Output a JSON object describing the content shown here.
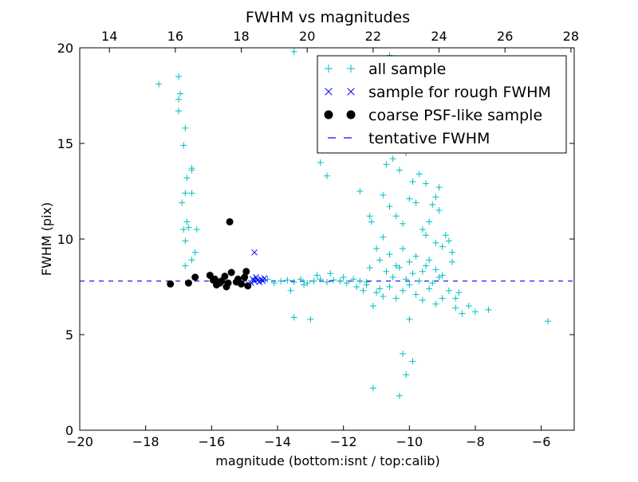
{
  "chart_data": {
    "type": "scatter",
    "title": "FWHM vs magnitudes",
    "xlabel": "magnitude (bottom:isnt / top:calib)",
    "ylabel": "FWHM (pix)",
    "xlim": [
      -20,
      -5
    ],
    "ylim": [
      0,
      20
    ],
    "top_xlim": [
      13.1,
      28.1
    ],
    "x_ticks": [
      -20,
      -18,
      -16,
      -14,
      -12,
      -10,
      -8,
      -6
    ],
    "x_tick_labels": [
      "−20",
      "−18",
      "−16",
      "−14",
      "−12",
      "−10",
      "−8",
      "−6"
    ],
    "y_ticks": [
      0,
      5,
      10,
      15,
      20
    ],
    "y_tick_labels": [
      "0",
      "5",
      "10",
      "15",
      "20"
    ],
    "top_x_ticks": [
      14,
      16,
      18,
      20,
      22,
      24,
      26,
      28
    ],
    "top_x_tick_labels": [
      "14",
      "16",
      "18",
      "20",
      "22",
      "24",
      "26",
      "28"
    ],
    "legend_position": "top-right",
    "series": [
      {
        "name": "all sample",
        "marker": "plus",
        "color": "#00bfbf",
        "points": [
          [
            -17.6,
            18.1
          ],
          [
            -17.0,
            18.5
          ],
          [
            -17.0,
            17.3
          ],
          [
            -16.95,
            17.6
          ],
          [
            -17.0,
            16.7
          ],
          [
            -16.8,
            15.8
          ],
          [
            -16.85,
            14.9
          ],
          [
            -16.6,
            13.7
          ],
          [
            -16.6,
            13.6
          ],
          [
            -16.75,
            13.2
          ],
          [
            -16.8,
            12.4
          ],
          [
            -16.6,
            12.4
          ],
          [
            -16.9,
            11.9
          ],
          [
            -16.75,
            10.9
          ],
          [
            -16.7,
            10.6
          ],
          [
            -16.85,
            10.5
          ],
          [
            -16.45,
            10.5
          ],
          [
            -16.8,
            9.9
          ],
          [
            -16.5,
            9.3
          ],
          [
            -16.8,
            8.6
          ],
          [
            -16.6,
            8.9
          ],
          [
            -14.7,
            7.9
          ],
          [
            -14.5,
            7.8
          ],
          [
            -14.3,
            7.9
          ],
          [
            -14.1,
            7.7
          ],
          [
            -13.9,
            7.8
          ],
          [
            -13.7,
            7.85
          ],
          [
            -13.5,
            7.75
          ],
          [
            -13.3,
            7.9
          ],
          [
            -13.1,
            7.7
          ],
          [
            -12.9,
            7.8
          ],
          [
            -12.7,
            7.9
          ],
          [
            -12.5,
            7.75
          ],
          [
            -12.3,
            7.85
          ],
          [
            -12.1,
            7.8
          ],
          [
            -11.9,
            7.7
          ],
          [
            -11.7,
            7.9
          ],
          [
            -11.5,
            7.8
          ],
          [
            -11.3,
            7.75
          ],
          [
            -13.6,
            7.3
          ],
          [
            -13.2,
            7.6
          ],
          [
            -12.8,
            8.1
          ],
          [
            -12.4,
            8.2
          ],
          [
            -12.0,
            8.0
          ],
          [
            -11.6,
            7.5
          ],
          [
            -13.5,
            5.9
          ],
          [
            -13.0,
            5.8
          ],
          [
            -12.7,
            14.0
          ],
          [
            -12.5,
            13.3
          ],
          [
            -11.5,
            12.5
          ],
          [
            -11.2,
            11.2
          ],
          [
            -11.15,
            10.9
          ],
          [
            -11.0,
            9.5
          ],
          [
            -11.1,
            6.5
          ],
          [
            -11.2,
            8.5
          ],
          [
            -11.0,
            7.2
          ],
          [
            -10.8,
            7.0
          ],
          [
            -10.6,
            7.5
          ],
          [
            -10.4,
            6.9
          ],
          [
            -10.2,
            7.3
          ],
          [
            -10.0,
            7.6
          ],
          [
            -9.8,
            7.1
          ],
          [
            -9.6,
            6.8
          ],
          [
            -9.4,
            7.4
          ],
          [
            -9.2,
            6.6
          ],
          [
            -9.0,
            6.9
          ],
          [
            -8.8,
            7.3
          ],
          [
            -8.6,
            6.4
          ],
          [
            -8.4,
            6.1
          ],
          [
            -8.2,
            6.5
          ],
          [
            -8.0,
            6.2
          ],
          [
            -7.6,
            6.3
          ],
          [
            -5.8,
            5.7
          ],
          [
            -10.9,
            14.8
          ],
          [
            -10.7,
            13.9
          ],
          [
            -10.5,
            14.2
          ],
          [
            -10.3,
            13.6
          ],
          [
            -10.1,
            14.5
          ],
          [
            -9.9,
            13.0
          ],
          [
            -9.7,
            13.4
          ],
          [
            -9.5,
            12.9
          ],
          [
            -9.3,
            11.8
          ],
          [
            -9.1,
            11.5
          ],
          [
            -8.9,
            10.2
          ],
          [
            -8.7,
            9.3
          ],
          [
            -10.8,
            12.3
          ],
          [
            -10.6,
            11.7
          ],
          [
            -10.4,
            11.2
          ],
          [
            -10.2,
            10.8
          ],
          [
            -10.0,
            12.1
          ],
          [
            -9.8,
            11.9
          ],
          [
            -9.6,
            10.5
          ],
          [
            -9.4,
            10.9
          ],
          [
            -9.2,
            9.8
          ],
          [
            -9.0,
            9.6
          ],
          [
            -10.8,
            10.1
          ],
          [
            -10.6,
            9.2
          ],
          [
            -10.4,
            8.6
          ],
          [
            -10.2,
            9.5
          ],
          [
            -10.0,
            8.8
          ],
          [
            -9.8,
            9.1
          ],
          [
            -9.6,
            8.3
          ],
          [
            -9.4,
            8.9
          ],
          [
            -9.2,
            8.4
          ],
          [
            -9.0,
            8.1
          ],
          [
            -10.9,
            8.9
          ],
          [
            -10.7,
            8.3
          ],
          [
            -10.5,
            8.0
          ],
          [
            -10.3,
            8.5
          ],
          [
            -10.1,
            7.9
          ],
          [
            -9.9,
            8.2
          ],
          [
            -9.7,
            7.8
          ],
          [
            -9.5,
            8.6
          ],
          [
            -9.3,
            7.7
          ],
          [
            -9.1,
            8.0
          ],
          [
            -10.6,
            15.6
          ],
          [
            -10.3,
            16.1
          ],
          [
            -10.0,
            17.2
          ],
          [
            -9.8,
            15.4
          ],
          [
            -9.6,
            16.6
          ],
          [
            -10.2,
            19.2
          ],
          [
            -9.7,
            18.4
          ],
          [
            -10.6,
            19.6
          ],
          [
            -13.5,
            19.8
          ],
          [
            -11.1,
            2.2
          ],
          [
            -10.1,
            2.9
          ],
          [
            -10.2,
            4.0
          ],
          [
            -9.9,
            3.6
          ],
          [
            -10.3,
            1.8
          ],
          [
            -10.0,
            5.8
          ],
          [
            -8.5,
            7.2
          ],
          [
            -8.6,
            6.9
          ],
          [
            -8.7,
            8.8
          ],
          [
            -8.8,
            9.9
          ],
          [
            -9.1,
            12.7
          ],
          [
            -9.2,
            12.2
          ],
          [
            -9.5,
            10.2
          ],
          [
            -11.4,
            7.3
          ],
          [
            -11.3,
            7.6
          ],
          [
            -10.9,
            7.4
          ]
        ]
      },
      {
        "name": "sample for rough FWHM",
        "marker": "x",
        "color": "#0000ff",
        "points": [
          [
            -14.7,
            9.3
          ],
          [
            -14.8,
            7.7
          ],
          [
            -14.75,
            7.9
          ],
          [
            -14.7,
            7.8
          ],
          [
            -14.65,
            8.0
          ],
          [
            -14.6,
            7.85
          ],
          [
            -14.55,
            7.75
          ],
          [
            -14.5,
            7.9
          ],
          [
            -14.45,
            7.8
          ],
          [
            -14.4,
            7.95
          ]
        ]
      },
      {
        "name": "coarse PSF-like sample",
        "marker": "circle",
        "color": "#000000",
        "points": [
          [
            -17.25,
            7.65
          ],
          [
            -16.7,
            7.7
          ],
          [
            -16.5,
            8.0
          ],
          [
            -16.05,
            8.1
          ],
          [
            -15.9,
            7.9
          ],
          [
            -15.85,
            7.6
          ],
          [
            -15.7,
            7.8
          ],
          [
            -15.6,
            8.05
          ],
          [
            -15.55,
            7.5
          ],
          [
            -15.4,
            8.25
          ],
          [
            -15.45,
            10.9
          ],
          [
            -15.25,
            7.75
          ],
          [
            -15.2,
            7.9
          ],
          [
            -15.0,
            8.0
          ],
          [
            -14.95,
            8.3
          ],
          [
            -14.9,
            7.55
          ],
          [
            -15.75,
            7.7
          ],
          [
            -15.95,
            7.85
          ],
          [
            -15.5,
            7.7
          ],
          [
            -15.1,
            7.65
          ]
        ]
      },
      {
        "name": "tentative FWHM",
        "marker": "dashed-line",
        "color": "#0000ff",
        "y_value": 7.8
      }
    ]
  }
}
